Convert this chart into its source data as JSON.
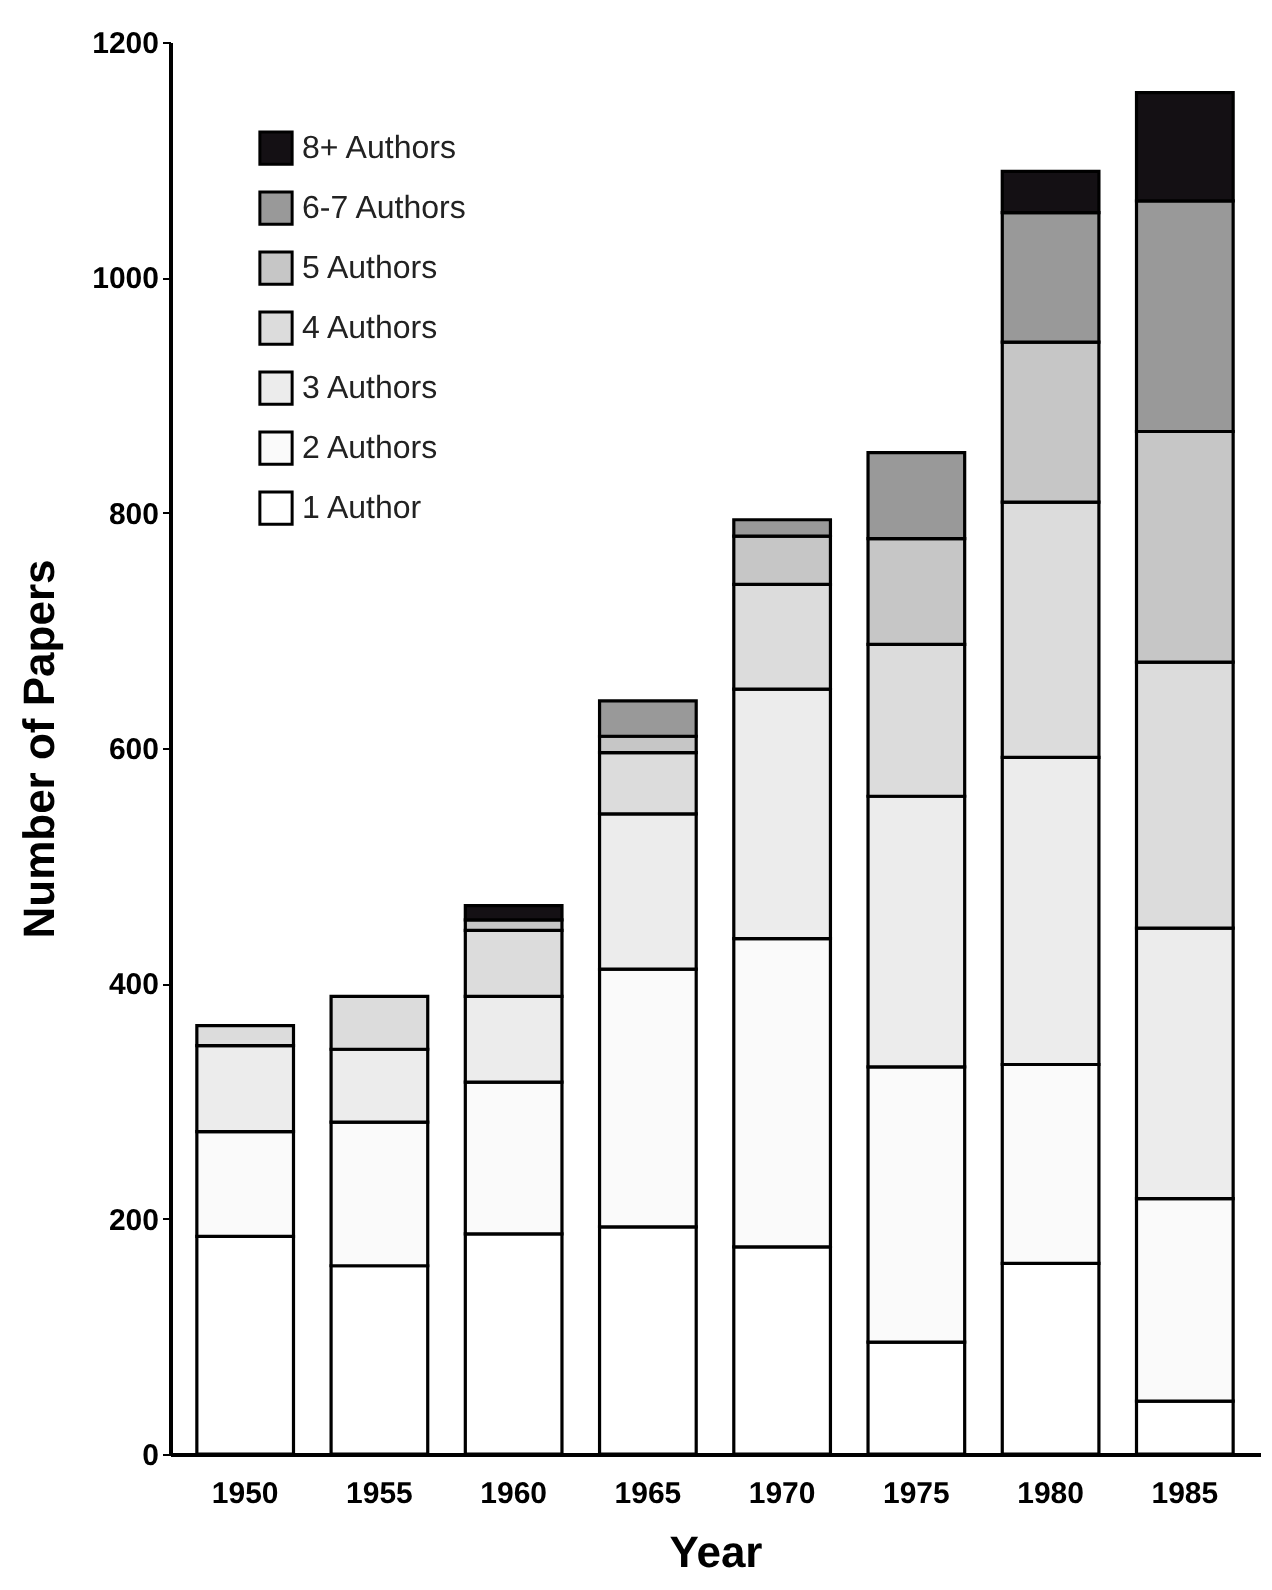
{
  "chart_data": {
    "type": "bar",
    "stacked": true,
    "xlabel": "Year",
    "ylabel": "Number of Papers",
    "categories": [
      "1950",
      "1955",
      "1960",
      "1965",
      "1970",
      "1975",
      "1980",
      "1985"
    ],
    "ylim": [
      0,
      1200
    ],
    "yticks": [
      0,
      200,
      400,
      600,
      800,
      1000,
      1200
    ],
    "grid": false,
    "legend": "top left",
    "series": [
      {
        "name": "1 Author",
        "color": "#ffffff",
        "values": [
          185,
          160,
          187,
          193,
          176,
          95,
          162,
          45
        ]
      },
      {
        "name": "2 Authors",
        "color": "#fafafa",
        "values": [
          89,
          122,
          129,
          219,
          262,
          234,
          169,
          172
        ]
      },
      {
        "name": "3 Authors",
        "color": "#ececec",
        "values": [
          73,
          62,
          73,
          132,
          212,
          230,
          261,
          230
        ]
      },
      {
        "name": "4 Authors",
        "color": "#dcdcdc",
        "values": [
          17,
          45,
          56,
          52,
          89,
          129,
          217,
          226
        ]
      },
      {
        "name": "5 Authors",
        "color": "#c6c6c6",
        "values": [
          0,
          0,
          9,
          14,
          41,
          90,
          136,
          196
        ]
      },
      {
        "name": "6-7 Authors",
        "color": "#999999",
        "values": [
          0,
          0,
          0,
          30,
          14,
          73,
          110,
          196
        ]
      },
      {
        "name": "8+ Authors",
        "color": "#141014",
        "values": [
          0,
          0,
          12,
          0,
          0,
          0,
          35,
          92
        ]
      }
    ]
  }
}
